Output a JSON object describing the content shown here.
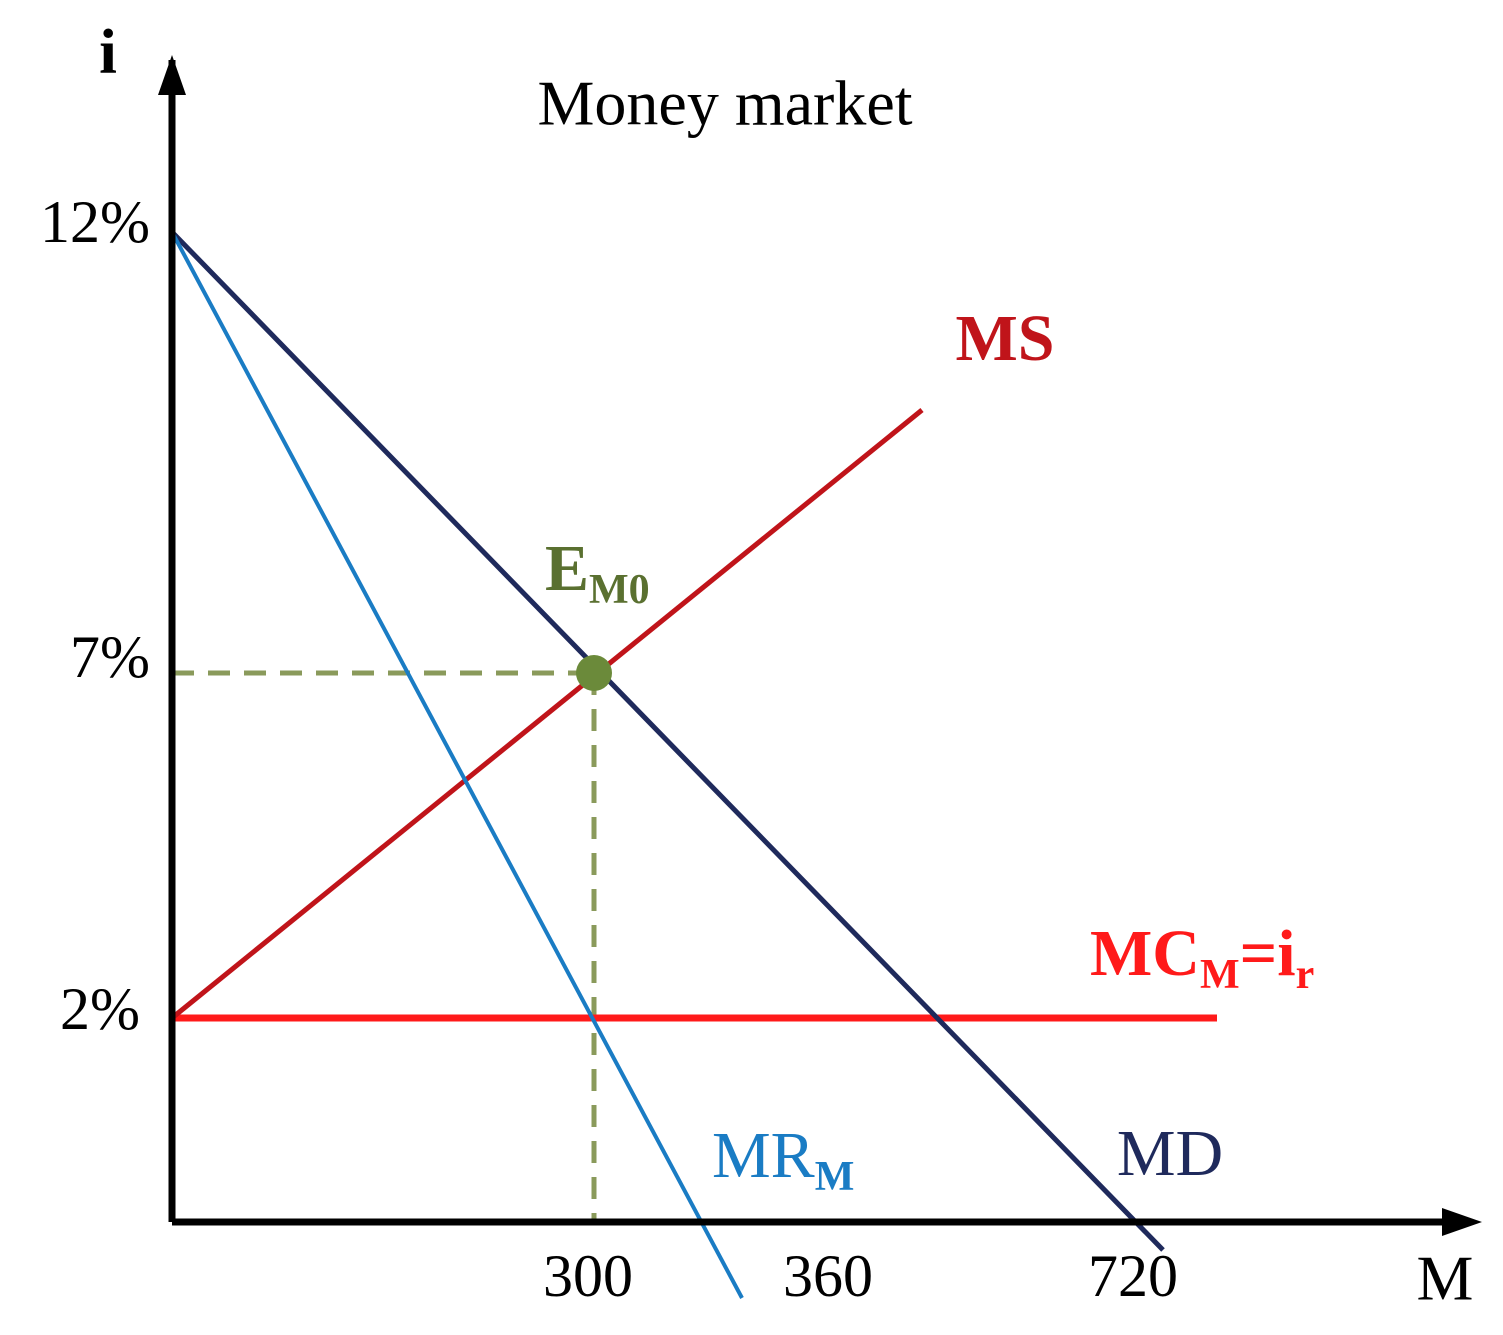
{
  "title": "Money market",
  "axes": {
    "y_label": "i",
    "x_label": "M"
  },
  "y_ticks": [
    "12%",
    "7%",
    "2%"
  ],
  "x_ticks": [
    "300",
    "360",
    "720"
  ],
  "curves": {
    "ms": {
      "label": "MS"
    },
    "md": {
      "label": "MD"
    },
    "mr": {
      "label": "MR",
      "sub": "M"
    },
    "mc": {
      "label": "MC",
      "sub": "M",
      "label2": "=i",
      "sub2": "r"
    },
    "equilibrium": {
      "label": "E",
      "sub": "M0"
    }
  }
}
